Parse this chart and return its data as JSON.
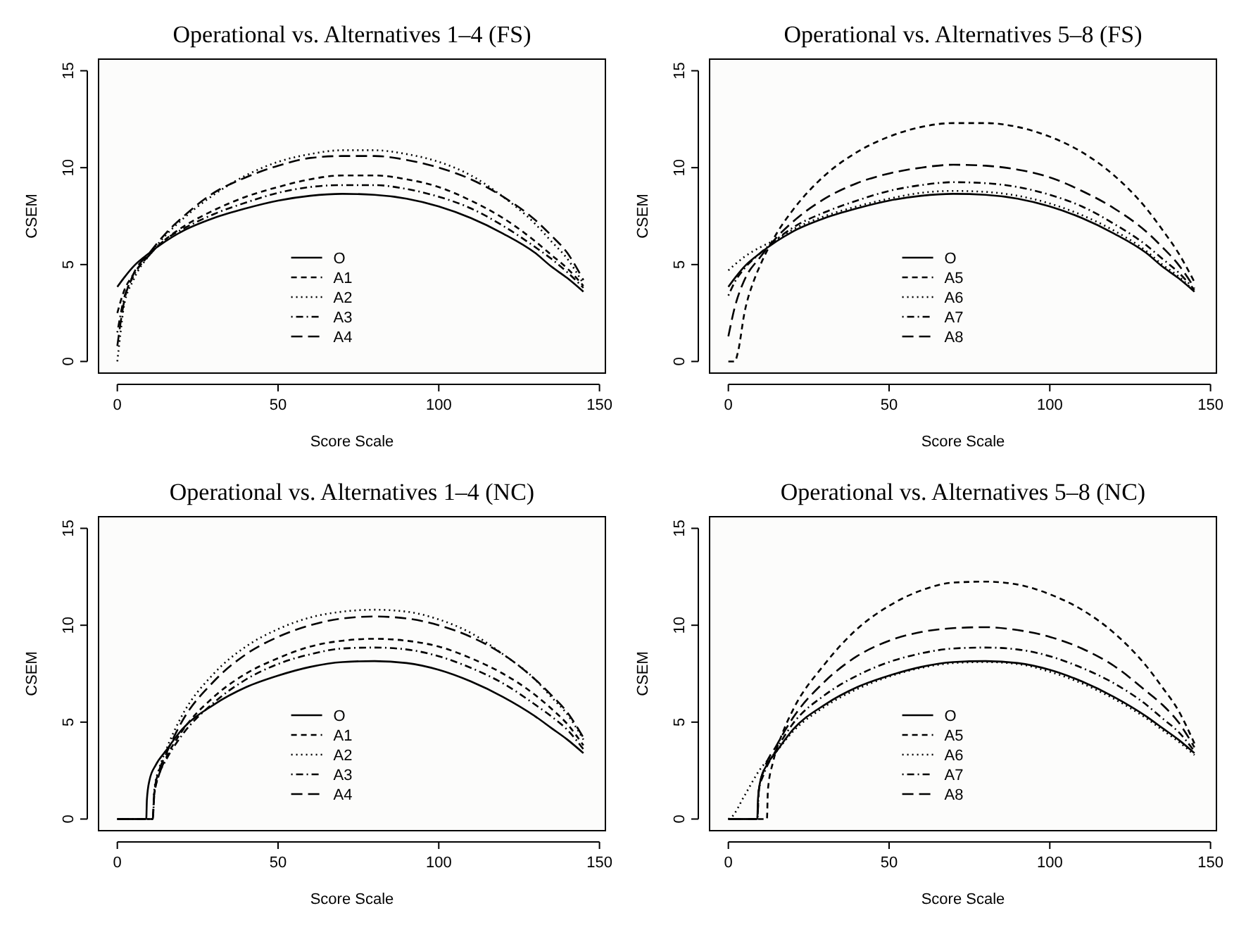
{
  "chart_data": [
    {
      "type": "line",
      "title": "Operational vs. Alternatives 1–4 (FS)",
      "xlabel": "Score Scale",
      "ylabel": "CSEM",
      "xlim": [
        -5.84,
        151.84
      ],
      "ylim": [
        -0.6,
        15.6
      ],
      "xticks": [
        0,
        50,
        100,
        150
      ],
      "yticks": [
        0,
        5,
        10,
        15
      ],
      "legend": "bottom",
      "series": [
        {
          "name": "O",
          "color": "#000000",
          "line_style": "solid",
          "x": [
            0,
            2,
            5,
            10,
            15,
            20,
            30,
            40,
            50,
            60,
            70,
            80,
            90,
            100,
            110,
            120,
            130,
            135,
            140,
            145
          ],
          "values": [
            3.85,
            4.3,
            4.9,
            5.6,
            6.2,
            6.7,
            7.4,
            7.9,
            8.3,
            8.55,
            8.65,
            8.6,
            8.4,
            8.0,
            7.4,
            6.6,
            5.6,
            4.9,
            4.3,
            3.6
          ]
        },
        {
          "name": "A1",
          "color": "#000000",
          "line_style": "dashed",
          "x": [
            0,
            2,
            5,
            10,
            15,
            20,
            30,
            40,
            50,
            60,
            70,
            80,
            90,
            100,
            110,
            120,
            130,
            135,
            140,
            145
          ],
          "values": [
            2.5,
            3.6,
            4.5,
            5.5,
            6.3,
            6.9,
            7.8,
            8.5,
            9.0,
            9.4,
            9.6,
            9.6,
            9.4,
            9.0,
            8.3,
            7.4,
            6.2,
            5.5,
            4.8,
            3.9
          ]
        },
        {
          "name": "A2",
          "color": "#000000",
          "line_style": "dotted",
          "x": [
            0,
            1,
            2,
            5,
            10,
            15,
            20,
            30,
            40,
            50,
            60,
            70,
            80,
            90,
            100,
            110,
            120,
            130,
            135,
            140,
            145
          ],
          "values": [
            0,
            1.5,
            2.8,
            4.2,
            5.5,
            6.5,
            7.3,
            8.6,
            9.6,
            10.3,
            10.7,
            10.9,
            10.9,
            10.7,
            10.3,
            9.6,
            8.5,
            7.1,
            6.2,
            5.3,
            4.0
          ]
        },
        {
          "name": "A3",
          "color": "#000000",
          "line_style": "dashdot",
          "x": [
            0,
            2,
            5,
            10,
            15,
            20,
            30,
            40,
            50,
            60,
            70,
            80,
            90,
            100,
            110,
            120,
            130,
            135,
            140,
            145
          ],
          "values": [
            1.5,
            3.2,
            4.4,
            5.5,
            6.3,
            6.8,
            7.6,
            8.2,
            8.7,
            9.0,
            9.1,
            9.1,
            8.9,
            8.5,
            7.9,
            7.0,
            5.9,
            5.3,
            4.6,
            3.8
          ]
        },
        {
          "name": "A4",
          "color": "#000000",
          "line_style": "longdash",
          "x": [
            0,
            2,
            5,
            10,
            15,
            20,
            30,
            40,
            50,
            60,
            70,
            80,
            90,
            100,
            110,
            120,
            130,
            135,
            140,
            145
          ],
          "values": [
            0.8,
            3.0,
            4.5,
            5.6,
            6.6,
            7.4,
            8.7,
            9.5,
            10.1,
            10.5,
            10.6,
            10.6,
            10.4,
            10.0,
            9.4,
            8.5,
            7.3,
            6.5,
            5.6,
            4.2
          ]
        }
      ]
    },
    {
      "type": "line",
      "title": "Operational vs. Alternatives 5–8 (FS)",
      "xlabel": "Score Scale",
      "ylabel": "CSEM",
      "xlim": [
        -5.84,
        151.84
      ],
      "ylim": [
        -0.6,
        15.6
      ],
      "xticks": [
        0,
        50,
        100,
        150
      ],
      "yticks": [
        0,
        5,
        10,
        15
      ],
      "legend": "bottom",
      "series": [
        {
          "name": "O",
          "color": "#000000",
          "line_style": "solid",
          "x": [
            0,
            2,
            5,
            10,
            15,
            20,
            30,
            40,
            50,
            60,
            70,
            80,
            90,
            100,
            110,
            120,
            130,
            135,
            140,
            145
          ],
          "values": [
            3.85,
            4.3,
            4.9,
            5.6,
            6.2,
            6.7,
            7.4,
            7.9,
            8.3,
            8.55,
            8.65,
            8.6,
            8.4,
            8.0,
            7.4,
            6.6,
            5.6,
            4.9,
            4.3,
            3.6
          ]
        },
        {
          "name": "A5",
          "color": "#000000",
          "line_style": "dashed",
          "x": [
            0,
            2,
            3,
            5,
            8,
            10,
            15,
            20,
            30,
            40,
            50,
            60,
            70,
            80,
            90,
            100,
            110,
            120,
            130,
            135,
            140,
            145
          ],
          "values": [
            0,
            0,
            0.5,
            2.5,
            4.2,
            5.0,
            6.6,
            7.8,
            9.6,
            10.8,
            11.6,
            12.1,
            12.3,
            12.3,
            12.1,
            11.6,
            10.8,
            9.6,
            7.9,
            6.8,
            5.6,
            4.1
          ]
        },
        {
          "name": "A6",
          "color": "#000000",
          "line_style": "dotted",
          "x": [
            0,
            2,
            5,
            10,
            15,
            20,
            30,
            40,
            50,
            60,
            70,
            80,
            90,
            100,
            110,
            120,
            130,
            135,
            140,
            145
          ],
          "values": [
            4.7,
            5.0,
            5.4,
            5.9,
            6.3,
            6.8,
            7.5,
            8.0,
            8.4,
            8.7,
            8.8,
            8.75,
            8.55,
            8.15,
            7.55,
            6.75,
            5.7,
            5.0,
            4.4,
            3.6
          ]
        },
        {
          "name": "A7",
          "color": "#000000",
          "line_style": "dashdot",
          "x": [
            0,
            2,
            5,
            10,
            15,
            20,
            30,
            40,
            50,
            60,
            70,
            80,
            90,
            100,
            110,
            120,
            130,
            135,
            140,
            145
          ],
          "values": [
            3.4,
            4.1,
            4.8,
            5.6,
            6.3,
            6.9,
            7.7,
            8.3,
            8.8,
            9.1,
            9.25,
            9.2,
            9.0,
            8.6,
            8.0,
            7.1,
            6.0,
            5.3,
            4.6,
            3.7
          ]
        },
        {
          "name": "A8",
          "color": "#000000",
          "line_style": "longdash",
          "x": [
            0,
            2,
            5,
            10,
            15,
            20,
            30,
            40,
            50,
            60,
            70,
            80,
            90,
            100,
            110,
            120,
            130,
            135,
            140,
            145
          ],
          "values": [
            1.3,
            2.8,
            4.2,
            5.4,
            6.4,
            7.2,
            8.4,
            9.2,
            9.7,
            10.0,
            10.15,
            10.1,
            9.9,
            9.5,
            8.8,
            7.9,
            6.7,
            5.9,
            5.0,
            3.8
          ]
        }
      ]
    },
    {
      "type": "line",
      "title": "Operational vs. Alternatives 1–4 (NC)",
      "xlabel": "Score Scale",
      "ylabel": "CSEM",
      "xlim": [
        -5.84,
        151.84
      ],
      "ylim": [
        -0.6,
        15.6
      ],
      "xticks": [
        0,
        50,
        100,
        150
      ],
      "yticks": [
        0,
        5,
        10,
        15
      ],
      "legend": "bottom",
      "series": [
        {
          "name": "O",
          "color": "#000000",
          "line_style": "solid",
          "x": [
            0,
            9,
            9.2,
            10,
            12,
            15,
            20,
            30,
            40,
            50,
            60,
            70,
            80,
            90,
            100,
            110,
            120,
            130,
            135,
            140,
            145
          ],
          "values": [
            0,
            0,
            1.0,
            2.0,
            2.8,
            3.5,
            4.6,
            5.9,
            6.8,
            7.4,
            7.85,
            8.1,
            8.15,
            8.05,
            7.7,
            7.1,
            6.3,
            5.3,
            4.7,
            4.1,
            3.4
          ]
        },
        {
          "name": "A1",
          "color": "#000000",
          "line_style": "dashed",
          "x": [
            0,
            11,
            11.5,
            13,
            15,
            20,
            30,
            40,
            50,
            60,
            70,
            80,
            90,
            100,
            110,
            120,
            130,
            135,
            140,
            145
          ],
          "values": [
            0,
            0,
            1.3,
            2.3,
            3.1,
            4.5,
            6.3,
            7.5,
            8.3,
            8.9,
            9.2,
            9.3,
            9.2,
            8.9,
            8.3,
            7.5,
            6.4,
            5.7,
            4.9,
            3.8
          ]
        },
        {
          "name": "A2",
          "color": "#000000",
          "line_style": "dotted",
          "x": [
            0,
            11,
            11.5,
            13,
            15,
            20,
            30,
            40,
            50,
            60,
            70,
            80,
            90,
            100,
            110,
            120,
            130,
            135,
            140,
            145
          ],
          "values": [
            0,
            0,
            1.5,
            2.6,
            3.5,
            5.3,
            7.5,
            8.9,
            9.8,
            10.4,
            10.7,
            10.8,
            10.7,
            10.3,
            9.6,
            8.5,
            7.2,
            6.3,
            5.4,
            4.1
          ]
        },
        {
          "name": "A3",
          "color": "#000000",
          "line_style": "dashdot",
          "x": [
            0,
            11,
            11.5,
            13,
            15,
            20,
            30,
            40,
            50,
            60,
            70,
            80,
            90,
            100,
            110,
            120,
            130,
            135,
            140,
            145
          ],
          "values": [
            0,
            0,
            1.2,
            2.3,
            3.0,
            4.3,
            6.0,
            7.2,
            8.0,
            8.5,
            8.8,
            8.85,
            8.75,
            8.4,
            7.8,
            7.0,
            5.9,
            5.3,
            4.6,
            3.6
          ]
        },
        {
          "name": "A4",
          "color": "#000000",
          "line_style": "longdash",
          "x": [
            0,
            11,
            11.5,
            13,
            15,
            20,
            30,
            40,
            50,
            60,
            70,
            80,
            90,
            100,
            110,
            120,
            130,
            135,
            140,
            145
          ],
          "values": [
            0,
            0,
            1.4,
            2.5,
            3.3,
            5.0,
            7.1,
            8.5,
            9.4,
            10.0,
            10.35,
            10.45,
            10.35,
            10.0,
            9.4,
            8.5,
            7.2,
            6.4,
            5.5,
            4.2
          ]
        }
      ]
    },
    {
      "type": "line",
      "title": "Operational vs. Alternatives 5–8 (NC)",
      "xlabel": "Score Scale",
      "ylabel": "CSEM",
      "xlim": [
        -5.84,
        151.84
      ],
      "ylim": [
        -0.6,
        15.6
      ],
      "xticks": [
        0,
        50,
        100,
        150
      ],
      "yticks": [
        0,
        5,
        10,
        15
      ],
      "legend": "bottom",
      "series": [
        {
          "name": "O",
          "color": "#000000",
          "line_style": "solid",
          "x": [
            0,
            9,
            9.2,
            10,
            12,
            15,
            20,
            30,
            40,
            50,
            60,
            70,
            80,
            90,
            100,
            110,
            120,
            130,
            135,
            140,
            145
          ],
          "values": [
            0,
            0,
            1.0,
            2.0,
            2.8,
            3.5,
            4.6,
            5.9,
            6.8,
            7.4,
            7.85,
            8.1,
            8.15,
            8.05,
            7.7,
            7.1,
            6.3,
            5.3,
            4.7,
            4.1,
            3.4
          ]
        },
        {
          "name": "A5",
          "color": "#000000",
          "line_style": "dashed",
          "x": [
            0,
            12,
            12.3,
            14,
            17,
            20,
            30,
            40,
            50,
            60,
            70,
            80,
            90,
            100,
            110,
            120,
            130,
            135,
            140,
            145
          ],
          "values": [
            0,
            0,
            1.5,
            3.0,
            4.5,
            5.6,
            8.0,
            9.8,
            11.0,
            11.8,
            12.2,
            12.25,
            12.1,
            11.6,
            10.8,
            9.6,
            7.9,
            6.8,
            5.6,
            3.9
          ]
        },
        {
          "name": "A6",
          "color": "#000000",
          "line_style": "dotted",
          "x": [
            0,
            1,
            5,
            10,
            15,
            20,
            30,
            40,
            50,
            60,
            70,
            80,
            90,
            100,
            110,
            120,
            130,
            135,
            140,
            145
          ],
          "values": [
            0,
            0.1,
            1.2,
            2.6,
            3.5,
            4.5,
            5.8,
            6.7,
            7.35,
            7.8,
            8.05,
            8.1,
            8.0,
            7.6,
            7.0,
            6.2,
            5.2,
            4.6,
            4.0,
            3.3
          ]
        },
        {
          "name": "A7",
          "color": "#000000",
          "line_style": "dashdot",
          "x": [
            0,
            9,
            9.5,
            11,
            15,
            20,
            30,
            40,
            50,
            60,
            70,
            80,
            90,
            100,
            110,
            120,
            130,
            135,
            140,
            145
          ],
          "values": [
            0,
            0,
            1.5,
            2.3,
            3.6,
            4.9,
            6.4,
            7.4,
            8.1,
            8.55,
            8.8,
            8.85,
            8.75,
            8.4,
            7.8,
            7.0,
            5.9,
            5.2,
            4.5,
            3.5
          ]
        },
        {
          "name": "A8",
          "color": "#000000",
          "line_style": "longdash",
          "x": [
            0,
            9,
            9.5,
            11,
            15,
            20,
            30,
            40,
            50,
            60,
            70,
            80,
            90,
            100,
            110,
            120,
            130,
            135,
            140,
            145
          ],
          "values": [
            0,
            0,
            1.5,
            2.5,
            3.8,
            5.2,
            7.1,
            8.4,
            9.2,
            9.65,
            9.85,
            9.9,
            9.75,
            9.4,
            8.8,
            7.9,
            6.6,
            5.9,
            5.0,
            3.7
          ]
        }
      ]
    }
  ]
}
